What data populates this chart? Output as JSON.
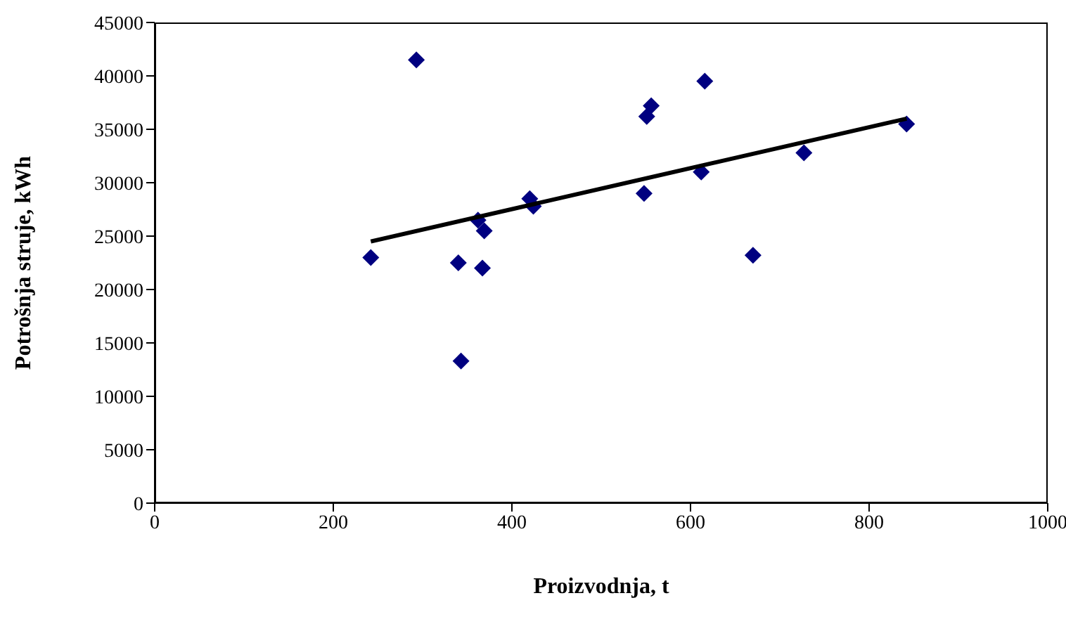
{
  "chart_data": {
    "type": "scatter",
    "xlabel": "Proizvodnja, t",
    "ylabel": "Potrošnja struje, kWh",
    "xlim": [
      0,
      1000
    ],
    "xticks": [
      0,
      200,
      400,
      600,
      800,
      1000
    ],
    "ylim": [
      0,
      45000
    ],
    "yticks": [
      0,
      5000,
      10000,
      15000,
      20000,
      25000,
      30000,
      35000,
      40000,
      45000
    ],
    "marker": "diamond",
    "series": [
      {
        "color": "#000080",
        "x": [
          242,
          293,
          340,
          343,
          362,
          367,
          369,
          420,
          424,
          548,
          551,
          556,
          612,
          616,
          670,
          727,
          842
        ],
        "values": [
          23000,
          41500,
          22500,
          13300,
          26500,
          22000,
          25500,
          28500,
          27800,
          29000,
          36200,
          37200,
          31000,
          39500,
          23200,
          32800,
          35500
        ]
      },
      {
        "type": "line",
        "color": "#000000",
        "marker": "none",
        "line_style": "solid",
        "x": [
          242,
          842
        ],
        "values": [
          24500,
          36000
        ]
      }
    ]
  }
}
